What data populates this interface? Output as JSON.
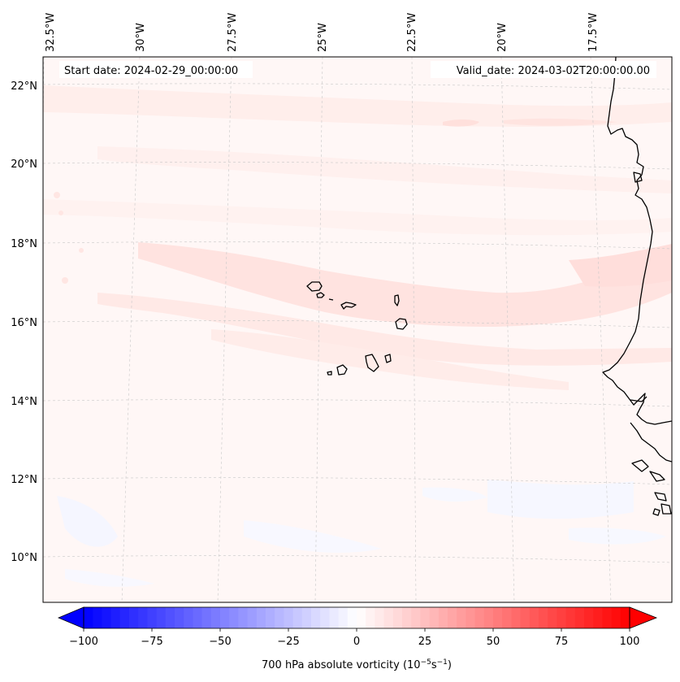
{
  "header": {
    "start_date": "Start date: 2024-02-29_00:00:00",
    "valid_date": "Valid_date: 2024-03-02T20:00:00.00"
  },
  "gridlines": {
    "longitudes": [
      "32.5°W",
      "30°W",
      "27.5°W",
      "25°W",
      "22.5°W",
      "20°W",
      "17.5°W"
    ],
    "latitudes": [
      "22°N",
      "20°N",
      "18°N",
      "16°N",
      "14°N",
      "12°N",
      "10°N"
    ]
  },
  "colorbar": {
    "label": "700 hPa absolute vorticity",
    "unit": "(10",
    "unit_exp1": "−5",
    "unit_mid": "s",
    "unit_exp2": "−1",
    "unit_close": ")",
    "ticks": [
      "−100",
      "−75",
      "−50",
      "−25",
      "0",
      "25",
      "50",
      "75",
      "100"
    ],
    "min": -100,
    "max": 100,
    "levels": 60,
    "colormap": "bwr",
    "extend": "both"
  },
  "colors": {
    "coastline": "#000000",
    "gridline": "#c8c8c8",
    "background_field": "#fff7f6",
    "positive_band": "#ffe4e1",
    "weak_band": "#fff0ee",
    "negative_patch": "#f6f7ff"
  }
}
